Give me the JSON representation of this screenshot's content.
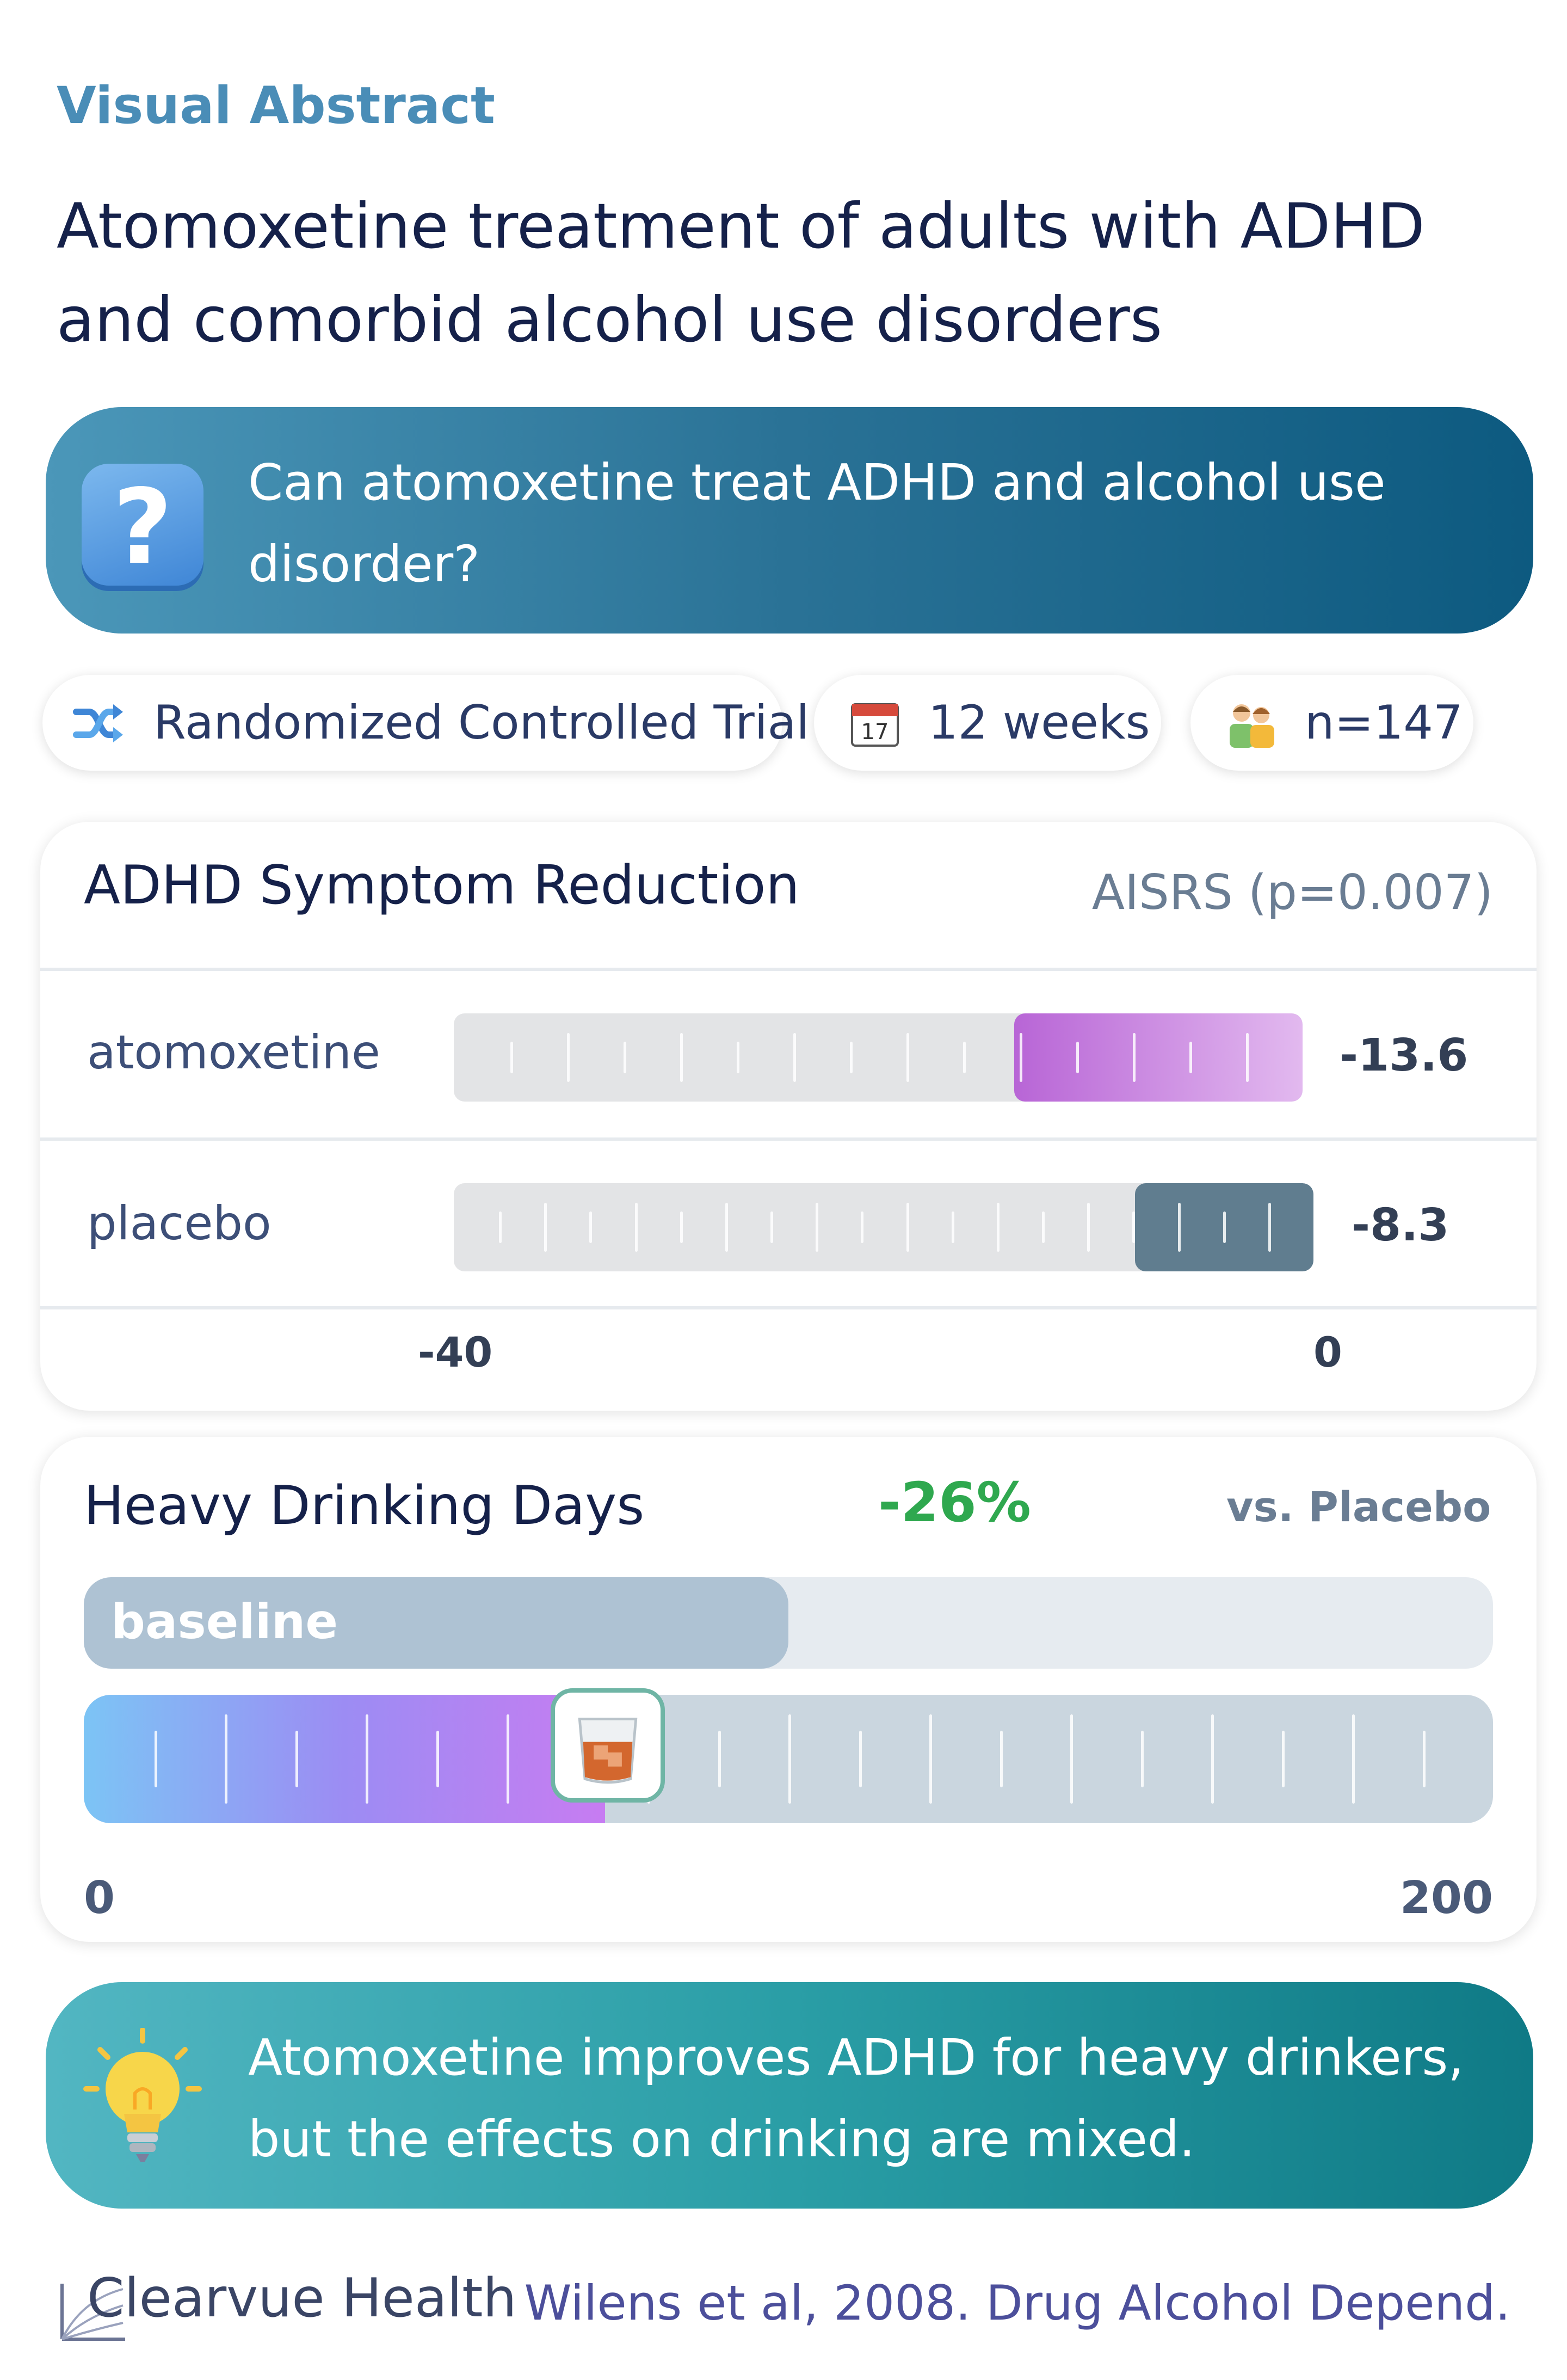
{
  "header": {
    "eyebrow": "Visual Abstract",
    "title": "Atomoxetine treatment of adults with ADHD and comorbid alcohol use disorders"
  },
  "question": {
    "icon": "question-mark-icon",
    "text": "Can atomoxetine treat ADHD and alcohol use disorder?"
  },
  "study": {
    "design": "Randomized Controlled Trial",
    "duration": "12 weeks",
    "sample": "n=147"
  },
  "adhd": {
    "title": "ADHD Symptom Reduction",
    "measure": "AISRS (p=0.007)",
    "axis_min": "-40",
    "axis_max": "0",
    "rows": [
      {
        "label": "atomoxetine",
        "value_label": "-13.6",
        "value": -13.6,
        "color": "#b865d6"
      },
      {
        "label": "placebo",
        "value_label": "-8.3",
        "value": -8.3,
        "color": "#607d8f"
      }
    ]
  },
  "drinking": {
    "title": "Heavy Drinking Days",
    "change": "-26%",
    "comparison": "vs. Placebo",
    "baseline_label": "baseline",
    "baseline_fraction": 0.5,
    "treated_fraction": 0.37,
    "axis_min": "0",
    "axis_max": "200",
    "marker_icon": "whiskey-glass-icon"
  },
  "conclusion": {
    "icon": "lightbulb-icon",
    "text": "Atomoxetine improves ADHD for heavy drinkers, but the effects on drinking are mixed."
  },
  "footer": {
    "brand": "Clearvue Health",
    "citation": "Wilens et al, 2008. Drug Alcohol Depend."
  }
}
